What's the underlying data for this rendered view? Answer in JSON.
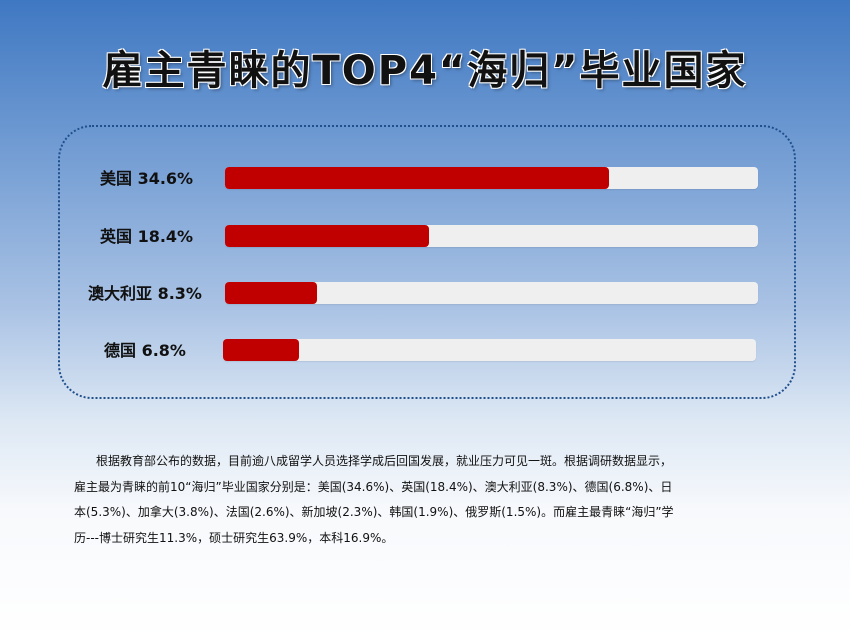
{
  "title": "雇主青睐的TOP4“海归”毕业国家",
  "chart_data": {
    "type": "bar",
    "orientation": "horizontal",
    "categories": [
      "美国",
      "英国",
      "澳大利亚",
      "德国"
    ],
    "labels": [
      "美国 34.6%",
      "英国 18.4%",
      "澳大利亚 8.3%",
      "德国 6.8%"
    ],
    "values": [
      34.6,
      18.4,
      8.3,
      6.8
    ],
    "unit": "%",
    "xlim": [
      0,
      48
    ],
    "bar_color": "#C00000",
    "track_color": "#EFEFEF"
  },
  "paragraph": [
    "根据教育部公布的数据，目前逾八成留学人员选择学成后回国发展，就业压力可见一斑。根据调研数据显示，",
    "雇主最为青睐的前10“海归”毕业国家分别是：美国(34.6%)、英国(18.4%)、澳大利亚(8.3%)、德国(6.8%)、日",
    "本(5.3%)、加拿大(3.8%)、法国(2.6%)、新加坡(2.3%)、韩国(1.9%)、俄罗斯(1.5%)。而雇主最青睐“海归”学",
    "历---博士研究生11.3%，硕士研究生63.9%，本科16.9%。"
  ]
}
